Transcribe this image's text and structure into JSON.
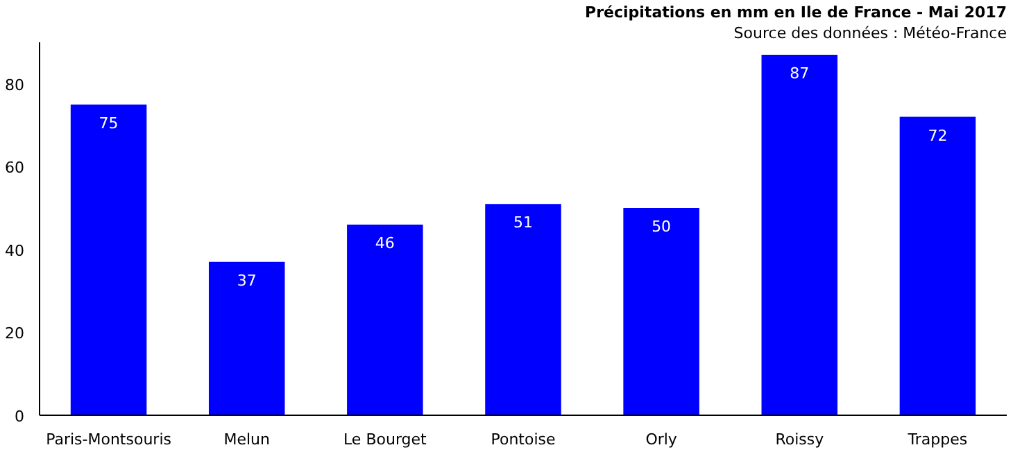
{
  "chart_data": {
    "type": "bar",
    "title": "Précipitations en mm en Ile de France - Mai 2017",
    "subtitle": "Source des données : Météo-France",
    "categories": [
      "Paris-Montsouris",
      "Melun",
      "Le Bourget",
      "Pontoise",
      "Orly",
      "Roissy",
      "Trappes"
    ],
    "values": [
      75,
      37,
      46,
      51,
      50,
      87,
      72
    ],
    "color": "#0000ff",
    "data_labels": true,
    "ylim": [
      0,
      90
    ],
    "yticks": [
      0,
      20,
      40,
      60,
      80
    ],
    "grid": false
  }
}
